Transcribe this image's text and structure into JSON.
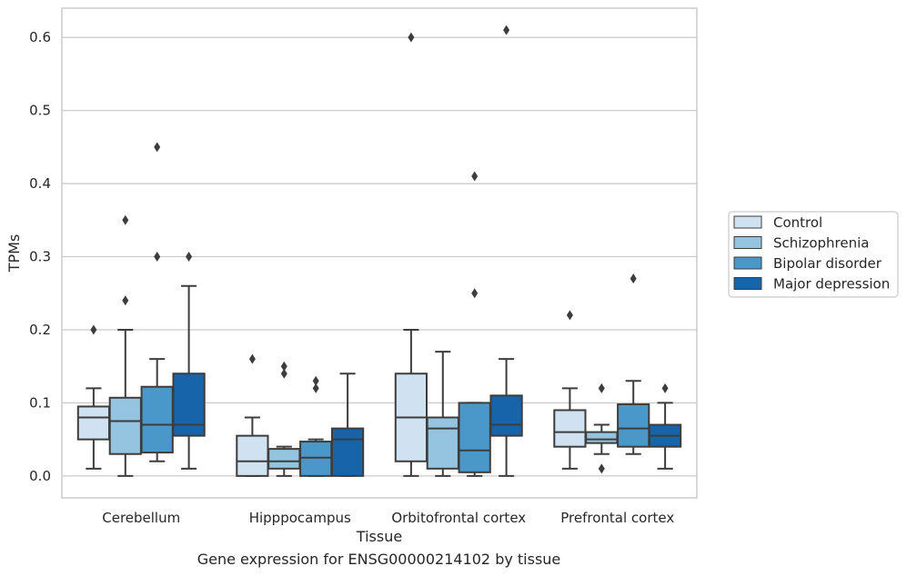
{
  "chart_data": {
    "type": "box",
    "xlabel": "Tissue",
    "ylabel": "TPMs",
    "ylim": [
      -0.03,
      0.64
    ],
    "yticks": [
      0.0,
      0.1,
      0.2,
      0.3,
      0.4,
      0.5,
      0.6
    ],
    "ytick_labels": [
      "0.0",
      "0.1",
      "0.2",
      "0.3",
      "0.4",
      "0.5",
      "0.6"
    ],
    "grid": "horizontal",
    "legend_position": "right",
    "categories": [
      "Cerebellum",
      "Hipppocampus",
      "Orbitofrontal cortex",
      "Prefrontal cortex"
    ],
    "series": [
      {
        "name": "Control",
        "color": "#d0e1f2",
        "boxes": [
          {
            "whislo": 0.01,
            "q1": 0.05,
            "med": 0.08,
            "q3": 0.095,
            "whishi": 0.12,
            "fliers": [
              0.2
            ]
          },
          {
            "whislo": 0.0,
            "q1": 0.0,
            "med": 0.02,
            "q3": 0.055,
            "whishi": 0.08,
            "fliers": [
              0.16
            ]
          },
          {
            "whislo": 0.0,
            "q1": 0.02,
            "med": 0.08,
            "q3": 0.14,
            "whishi": 0.2,
            "fliers": [
              0.6
            ]
          },
          {
            "whislo": 0.01,
            "q1": 0.04,
            "med": 0.06,
            "q3": 0.09,
            "whishi": 0.12,
            "fliers": [
              0.22
            ]
          }
        ]
      },
      {
        "name": "Schizophrenia",
        "color": "#94c4df",
        "boxes": [
          {
            "whislo": 0.0,
            "q1": 0.03,
            "med": 0.075,
            "q3": 0.107,
            "whishi": 0.2,
            "fliers": [
              0.24,
              0.35
            ]
          },
          {
            "whislo": 0.0,
            "q1": 0.01,
            "med": 0.02,
            "q3": 0.037,
            "whishi": 0.04,
            "fliers": [
              0.14,
              0.15
            ]
          },
          {
            "whislo": 0.0,
            "q1": 0.01,
            "med": 0.065,
            "q3": 0.08,
            "whishi": 0.17,
            "fliers": []
          },
          {
            "whislo": 0.03,
            "q1": 0.045,
            "med": 0.05,
            "q3": 0.06,
            "whishi": 0.07,
            "fliers": [
              0.01,
              0.12
            ]
          }
        ]
      },
      {
        "name": "Bipolar disorder",
        "color": "#4a98c9",
        "boxes": [
          {
            "whislo": 0.02,
            "q1": 0.032,
            "med": 0.07,
            "q3": 0.122,
            "whishi": 0.16,
            "fliers": [
              0.3,
              0.45
            ]
          },
          {
            "whislo": 0.0,
            "q1": 0.0,
            "med": 0.025,
            "q3": 0.047,
            "whishi": 0.05,
            "fliers": [
              0.12,
              0.13
            ]
          },
          {
            "whislo": 0.0,
            "q1": 0.005,
            "med": 0.035,
            "q3": 0.1,
            "whishi": 0.1,
            "fliers": [
              0.25,
              0.41
            ]
          },
          {
            "whislo": 0.03,
            "q1": 0.04,
            "med": 0.065,
            "q3": 0.098,
            "whishi": 0.13,
            "fliers": [
              0.27
            ]
          }
        ]
      },
      {
        "name": "Major depression",
        "color": "#1764ab",
        "boxes": [
          {
            "whislo": 0.01,
            "q1": 0.055,
            "med": 0.07,
            "q3": 0.14,
            "whishi": 0.26,
            "fliers": [
              0.3
            ]
          },
          {
            "whislo": 0.0,
            "q1": 0.0,
            "med": 0.05,
            "q3": 0.065,
            "whishi": 0.14,
            "fliers": []
          },
          {
            "whislo": 0.0,
            "q1": 0.055,
            "med": 0.07,
            "q3": 0.11,
            "whishi": 0.16,
            "fliers": [
              0.61
            ]
          },
          {
            "whislo": 0.01,
            "q1": 0.04,
            "med": 0.055,
            "q3": 0.07,
            "whishi": 0.1,
            "fliers": [
              0.12
            ]
          }
        ]
      }
    ]
  },
  "caption": "Gene expression for ENSG00000214102 by tissue"
}
